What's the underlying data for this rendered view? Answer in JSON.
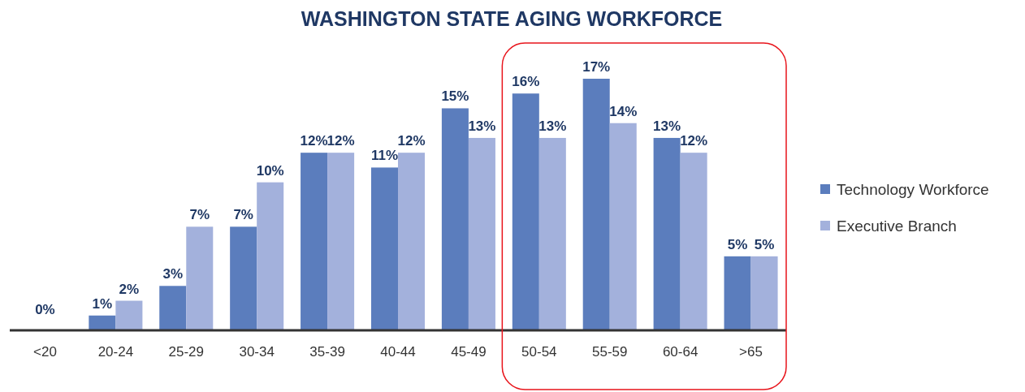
{
  "chart_data": {
    "type": "bar",
    "title": "WASHINGTON STATE AGING WORKFORCE",
    "categories": [
      "<20",
      "20-24",
      "25-29",
      "30-34",
      "35-39",
      "40-44",
      "45-49",
      "50-54",
      "55-59",
      "60-64",
      ">65"
    ],
    "series": [
      {
        "name": "Technology Workforce",
        "color": "#5b7dbd",
        "values": [
          0,
          1,
          3,
          7,
          12,
          11,
          15,
          16,
          17,
          13,
          5
        ],
        "value_labels": [
          null,
          "1%",
          "3%",
          "7%",
          "12%",
          "11%",
          "15%",
          "16%",
          "17%",
          "13%",
          "5%"
        ]
      },
      {
        "name": "Executive Branch",
        "color": "#a3b1dc",
        "values": [
          0,
          2,
          7,
          10,
          12,
          12,
          13,
          13,
          14,
          12,
          5
        ],
        "value_labels": [
          null,
          "2%",
          "7%",
          "10%",
          "12%",
          "12%",
          "13%",
          "13%",
          "14%",
          "12%",
          "5%"
        ]
      }
    ],
    "annotations": [
      {
        "text": "0%",
        "x": "<20",
        "y": 0
      }
    ],
    "legend": "right"
  }
}
